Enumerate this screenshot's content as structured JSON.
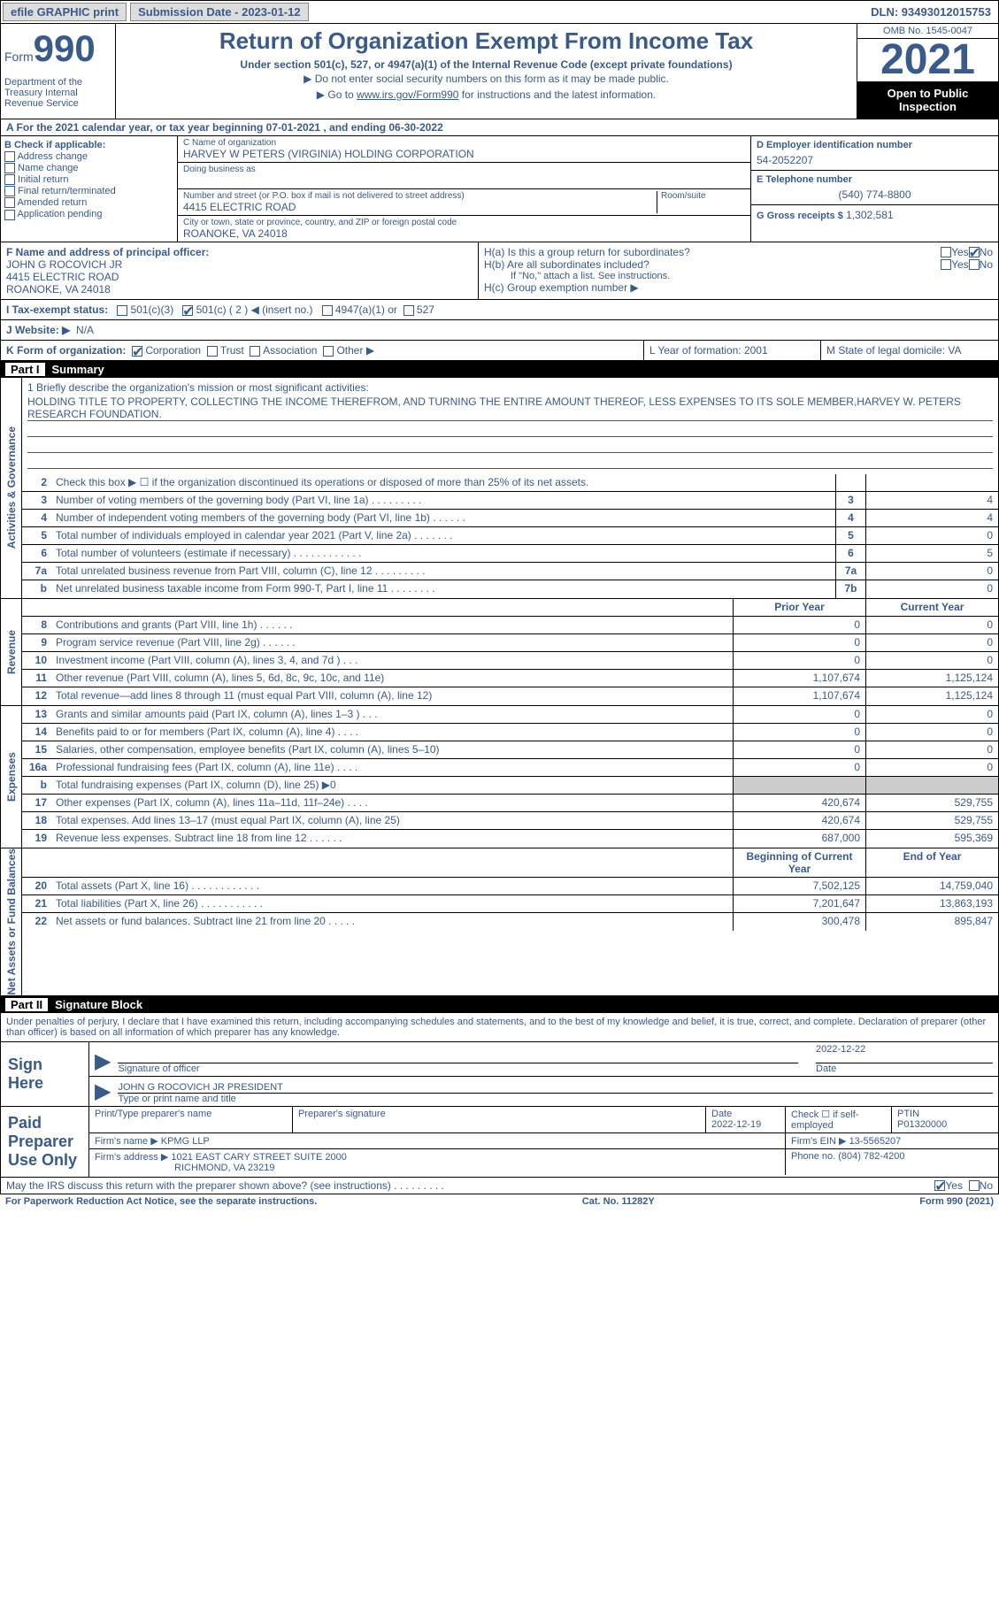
{
  "topbar": {
    "efile": "efile GRAPHIC print",
    "submission": "Submission Date - 2023-01-12",
    "dln": "DLN: 93493012015753"
  },
  "header": {
    "form": "Form",
    "num": "990",
    "dept": "Department of the Treasury Internal Revenue Service",
    "title": "Return of Organization Exempt From Income Tax",
    "sub1": "Under section 501(c), 527, or 4947(a)(1) of the Internal Revenue Code (except private foundations)",
    "sub2": "▶ Do not enter social security numbers on this form as it may be made public.",
    "sub3_pre": "▶ Go to ",
    "sub3_link": "www.irs.gov/Form990",
    "sub3_post": " for instructions and the latest information.",
    "omb": "OMB No. 1545-0047",
    "year": "2021",
    "inspect": "Open to Public Inspection"
  },
  "rowA": "A For the 2021 calendar year, or tax year beginning 07-01-2021    , and ending 06-30-2022",
  "colB": {
    "hdr": "B Check if applicable:",
    "opts": [
      "Address change",
      "Name change",
      "Initial return",
      "Final return/terminated",
      "Amended return",
      "Application pending"
    ]
  },
  "colC": {
    "name_lbl": "C Name of organization",
    "name": "HARVEY W PETERS (VIRGINIA) HOLDING CORPORATION",
    "dba_lbl": "Doing business as",
    "street_lbl": "Number and street (or P.O. box if mail is not delivered to street address)",
    "room_lbl": "Room/suite",
    "street": "4415 ELECTRIC ROAD",
    "city_lbl": "City or town, state or province, country, and ZIP or foreign postal code",
    "city": "ROANOKE, VA  24018"
  },
  "colD": {
    "ein_lbl": "D Employer identification number",
    "ein": "54-2052207",
    "tel_lbl": "E Telephone number",
    "tel": "(540) 774-8800",
    "gross_lbl": "G Gross receipts $",
    "gross": "1,302,581"
  },
  "rowF": {
    "lbl": "F Name and address of principal officer:",
    "name": "JOHN G ROCOVICH JR",
    "street": "4415 ELECTRIC ROAD",
    "city": "ROANOKE, VA  24018"
  },
  "rowH": {
    "ha": "H(a)  Is this a group return for subordinates?",
    "hb": "H(b)  Are all subordinates included?",
    "hb_note": "If \"No,\" attach a list. See instructions.",
    "hc": "H(c)  Group exemption number ▶"
  },
  "rowI": {
    "lbl": "I  Tax-exempt status:",
    "c3": "501(c)(3)",
    "c": "501(c) ( 2 ) ◀ (insert no.)",
    "a4947": "4947(a)(1) or",
    "s527": "527"
  },
  "rowJ": {
    "lbl": "J  Website: ▶",
    "val": "N/A"
  },
  "rowK": {
    "lbl": "K Form of organization:",
    "corp": "Corporation",
    "trust": "Trust",
    "assoc": "Association",
    "other": "Other ▶",
    "l": "L Year of formation: 2001",
    "m": "M State of legal domicile: VA"
  },
  "part1": {
    "num": "Part I",
    "title": "Summary"
  },
  "mission": {
    "lbl": "1  Briefly describe the organization's mission or most significant activities:",
    "text": "HOLDING TITLE TO PROPERTY, COLLECTING THE INCOME THEREFROM, AND TURNING THE ENTIRE AMOUNT THEREOF, LESS EXPENSES TO ITS SOLE MEMBER,HARVEY W. PETERS RESEARCH FOUNDATION."
  },
  "lines_gov": [
    {
      "n": "2",
      "d": "Check this box ▶ ☐ if the organization discontinued its operations or disposed of more than 25% of its net assets.",
      "b": "",
      "v": ""
    },
    {
      "n": "3",
      "d": "Number of voting members of the governing body (Part VI, line 1a)   .     .     .     .     .     .     .     .     .",
      "b": "3",
      "v": "4"
    },
    {
      "n": "4",
      "d": "Number of independent voting members of the governing body (Part VI, line 1b)   .     .     .     .     .     .",
      "b": "4",
      "v": "4"
    },
    {
      "n": "5",
      "d": "Total number of individuals employed in calendar year 2021 (Part V, line 2a)   .     .     .     .     .     .     .",
      "b": "5",
      "v": "0"
    },
    {
      "n": "6",
      "d": "Total number of volunteers (estimate if necessary)   .     .     .     .     .     .     .     .     .     .     .     .",
      "b": "6",
      "v": "5"
    },
    {
      "n": "7a",
      "d": "Total unrelated business revenue from Part VIII, column (C), line 12   .     .     .     .     .     .     .     .     .",
      "b": "7a",
      "v": "0"
    },
    {
      "n": "b",
      "d": "Net unrelated business taxable income from Form 990-T, Part I, line 11   .     .     .     .     .     .     .     .",
      "b": "7b",
      "v": "0"
    }
  ],
  "rev_hdr": {
    "prior": "Prior Year",
    "curr": "Current Year"
  },
  "lines_rev": [
    {
      "n": "8",
      "d": "Contributions and grants (Part VIII, line 1h)   .     .     .     .     .     .",
      "p": "0",
      "c": "0"
    },
    {
      "n": "9",
      "d": "Program service revenue (Part VIII, line 2g)   .     .     .     .     .     .",
      "p": "0",
      "c": "0"
    },
    {
      "n": "10",
      "d": "Investment income (Part VIII, column (A), lines 3, 4, and 7d )   .     .     .",
      "p": "0",
      "c": "0"
    },
    {
      "n": "11",
      "d": "Other revenue (Part VIII, column (A), lines 5, 6d, 8c, 9c, 10c, and 11e)",
      "p": "1,107,674",
      "c": "1,125,124"
    },
    {
      "n": "12",
      "d": "Total revenue—add lines 8 through 11 (must equal Part VIII, column (A), line 12)",
      "p": "1,107,674",
      "c": "1,125,124"
    }
  ],
  "lines_exp": [
    {
      "n": "13",
      "d": "Grants and similar amounts paid (Part IX, column (A), lines 1–3 )   .     .     .",
      "p": "0",
      "c": "0"
    },
    {
      "n": "14",
      "d": "Benefits paid to or for members (Part IX, column (A), line 4)   .     .     .     .",
      "p": "0",
      "c": "0"
    },
    {
      "n": "15",
      "d": "Salaries, other compensation, employee benefits (Part IX, column (A), lines 5–10)",
      "p": "0",
      "c": "0"
    },
    {
      "n": "16a",
      "d": "Professional fundraising fees (Part IX, column (A), line 11e)   .     .     .     .",
      "p": "0",
      "c": "0"
    },
    {
      "n": "b",
      "d": "Total fundraising expenses (Part IX, column (D), line 25) ▶0",
      "p": "gray",
      "c": "gray"
    },
    {
      "n": "17",
      "d": "Other expenses (Part IX, column (A), lines 11a–11d, 11f–24e)   .     .     .     .",
      "p": "420,674",
      "c": "529,755"
    },
    {
      "n": "18",
      "d": "Total expenses. Add lines 13–17 (must equal Part IX, column (A), line 25)",
      "p": "420,674",
      "c": "529,755"
    },
    {
      "n": "19",
      "d": "Revenue less expenses. Subtract line 18 from line 12   .     .     .     .     .     .",
      "p": "687,000",
      "c": "595,369"
    }
  ],
  "net_hdr": {
    "prior": "Beginning of Current Year",
    "curr": "End of Year"
  },
  "lines_net": [
    {
      "n": "20",
      "d": "Total assets (Part X, line 16)   .     .     .     .     .     .     .     .     .     .     .     .",
      "p": "7,502,125",
      "c": "14,759,040"
    },
    {
      "n": "21",
      "d": "Total liabilities (Part X, line 26)   .     .     .     .     .     .     .     .     .     .     .",
      "p": "7,201,647",
      "c": "13,863,193"
    },
    {
      "n": "22",
      "d": "Net assets or fund balances. Subtract line 21 from line 20   .     .     .     .     .",
      "p": "300,478",
      "c": "895,847"
    }
  ],
  "part2": {
    "num": "Part II",
    "title": "Signature Block"
  },
  "sig_text": "Under penalties of perjury, I declare that I have examined this return, including accompanying schedules and statements, and to the best of my knowledge and belief, it is true, correct, and complete. Declaration of preparer (other than officer) is based on all information of which preparer has any knowledge.",
  "sign": {
    "lbl": "Sign Here",
    "sig_lbl": "Signature of officer",
    "date": "2022-12-22",
    "name": "JOHN G ROCOVICH JR  PRESIDENT",
    "name_lbl": "Type or print name and title"
  },
  "prep": {
    "lbl": "Paid Preparer Use Only",
    "name_lbl": "Print/Type preparer's name",
    "sig_lbl": "Preparer's signature",
    "date_lbl": "Date",
    "date": "2022-12-19",
    "check_lbl": "Check ☐ if self-employed",
    "ptin_lbl": "PTIN",
    "ptin": "P01320000",
    "firm_lbl": "Firm's name    ▶",
    "firm": "KPMG LLP",
    "ein_lbl": "Firm's EIN ▶",
    "ein": "13-5565207",
    "addr_lbl": "Firm's address ▶",
    "addr1": "1021 EAST CARY STREET SUITE 2000",
    "addr2": "RICHMOND, VA  23219",
    "phone_lbl": "Phone no.",
    "phone": "(804) 782-4200"
  },
  "discuss": "May the IRS discuss this return with the preparer shown above? (see instructions)   .     .     .     .     .     .     .     .     .",
  "bottom": {
    "left": "For Paperwork Reduction Act Notice, see the separate instructions.",
    "mid": "Cat. No. 11282Y",
    "right": "Form 990 (2021)"
  },
  "vlabels": {
    "gov": "Activities & Governance",
    "rev": "Revenue",
    "exp": "Expenses",
    "net": "Net Assets or Fund Balances"
  },
  "yn": {
    "yes": "Yes",
    "no": "No"
  }
}
